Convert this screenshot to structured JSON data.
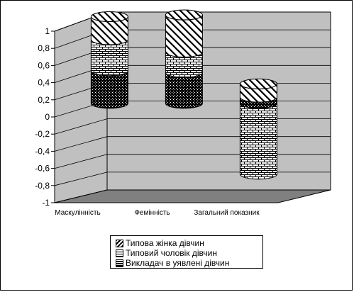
{
  "chart_data": {
    "type": "bar",
    "subtype": "3d-stacked-cylinder",
    "title": "",
    "xlabel": "",
    "ylabel": "",
    "categories": [
      "Маскулінність",
      "Фемінність",
      "Загальний показник"
    ],
    "series": [
      {
        "name": "Викладач в уявлені  дівчин",
        "values": [
          0.37,
          0.35,
          0.07
        ],
        "color": "#000000",
        "pattern": "dots"
      },
      {
        "name": "Типовий чоловік дівчин",
        "values": [
          0.35,
          0.23,
          -0.8
        ],
        "color": "#ffffff",
        "pattern": "bricks"
      },
      {
        "name": "Типова жінка дівчин",
        "values": [
          0.26,
          0.42,
          0.15
        ],
        "color": "#ffffff",
        "pattern": "diagonal"
      }
    ],
    "ylim": [
      -1,
      1
    ],
    "ytick_labels": [
      "1",
      "0,8",
      "0,6",
      "0,4",
      "0,2",
      "0",
      "-0,2",
      "-0,4",
      "-0,6",
      "-0,8",
      "-1"
    ],
    "grid": true,
    "legend_position": "bottom",
    "colors": {
      "wall": "#c0c0c0",
      "floor": "#808080",
      "background": "#ffffff"
    }
  }
}
